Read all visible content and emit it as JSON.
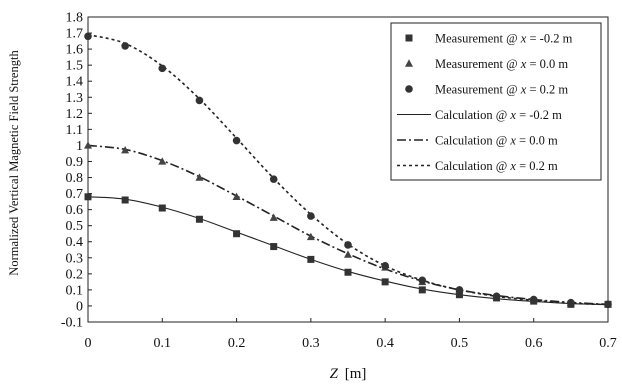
{
  "chart_data": {
    "type": "scatter",
    "xlabel_var": "Z",
    "xlabel_unit": "[m]",
    "ylabel": "Normalized Vertical Magnetic Field Strength",
    "xlim": [
      0,
      0.7
    ],
    "ylim": [
      -0.1,
      1.8
    ],
    "x_ticks": [
      "0",
      "0.1",
      "0.2",
      "0.3",
      "0.4",
      "0.5",
      "0.6",
      "0.7"
    ],
    "y_ticks": [
      "-0.1",
      "0",
      "0.1",
      "0.2",
      "0.3",
      "0.4",
      "0.5",
      "0.6",
      "0.7",
      "0.8",
      "0.9",
      "1",
      "1.1",
      "1.2",
      "1.3",
      "1.4",
      "1.5",
      "1.6",
      "1.7",
      "1.8"
    ],
    "grid": false,
    "legend_position": "top-right",
    "x": [
      0,
      0.05,
      0.1,
      0.15,
      0.2,
      0.25,
      0.3,
      0.35,
      0.4,
      0.45,
      0.5,
      0.55,
      0.6,
      0.65,
      0.7
    ],
    "series": [
      {
        "name_prefix": "Measurement @",
        "name_var": "x",
        "name_value": "= -0.2 m",
        "kind": "marker",
        "marker": "square",
        "values": [
          0.68,
          0.66,
          0.61,
          0.54,
          0.45,
          0.37,
          0.29,
          0.21,
          0.15,
          0.1,
          0.07,
          0.05,
          0.03,
          0.01,
          0.01
        ]
      },
      {
        "name_prefix": "Measurement @",
        "name_var": "x",
        "name_value": "= 0.0 m",
        "kind": "marker",
        "marker": "triangle",
        "values": [
          1.0,
          0.97,
          0.9,
          0.8,
          0.68,
          0.55,
          0.43,
          0.32,
          0.24,
          0.15,
          0.1,
          0.06,
          0.04,
          0.02,
          0.01
        ]
      },
      {
        "name_prefix": "Measurement @",
        "name_var": "x",
        "name_value": "= 0.2 m",
        "kind": "marker",
        "marker": "circle",
        "values": [
          1.68,
          1.62,
          1.48,
          1.28,
          1.03,
          0.79,
          0.56,
          0.38,
          0.25,
          0.16,
          0.1,
          0.06,
          0.04,
          0.02,
          0.01
        ]
      },
      {
        "name_prefix": "Calculation @",
        "name_var": "x",
        "name_value": "= -0.2 m",
        "kind": "line",
        "dash": "solid",
        "values": [
          0.68,
          0.665,
          0.615,
          0.545,
          0.46,
          0.375,
          0.29,
          0.215,
          0.155,
          0.105,
          0.07,
          0.045,
          0.028,
          0.015,
          0.008
        ]
      },
      {
        "name_prefix": "Calculation @",
        "name_var": "x",
        "name_value": "= 0.0 m",
        "kind": "line",
        "dash": "dashdot",
        "values": [
          1.0,
          0.975,
          0.905,
          0.805,
          0.685,
          0.56,
          0.435,
          0.325,
          0.23,
          0.155,
          0.1,
          0.065,
          0.04,
          0.022,
          0.01
        ]
      },
      {
        "name_prefix": "Calculation @",
        "name_var": "x",
        "name_value": "= 0.2 m",
        "kind": "line",
        "dash": "dotted",
        "values": [
          1.69,
          1.635,
          1.495,
          1.29,
          1.045,
          0.795,
          0.57,
          0.385,
          0.25,
          0.16,
          0.1,
          0.06,
          0.035,
          0.018,
          0.008
        ]
      }
    ]
  }
}
